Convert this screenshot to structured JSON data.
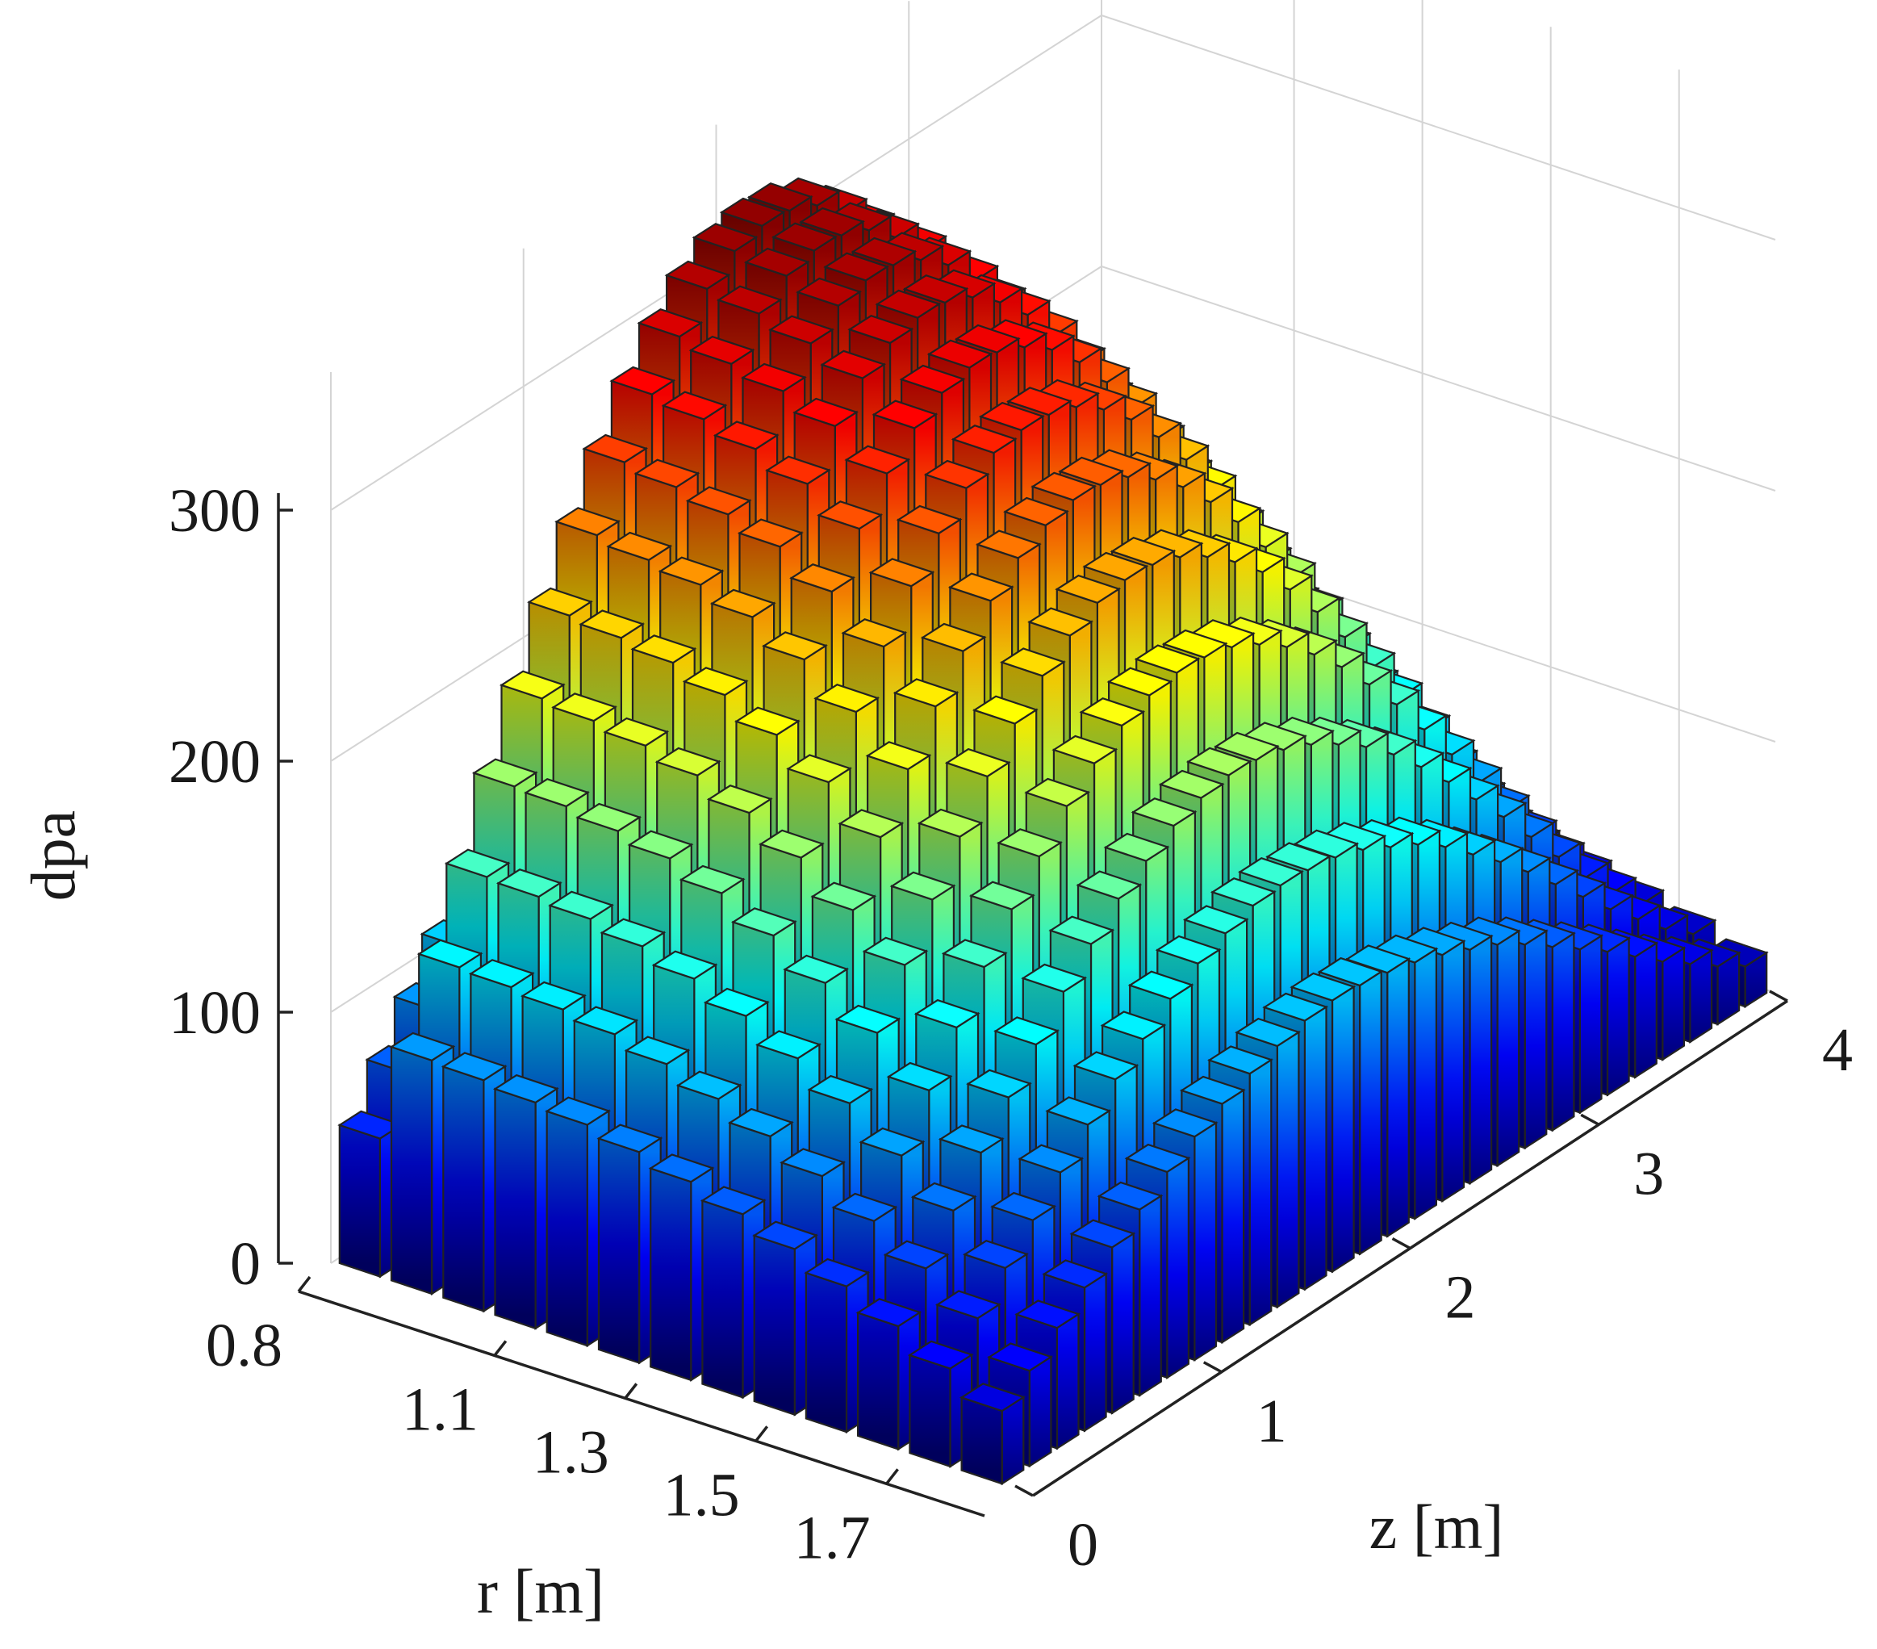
{
  "chart_data": {
    "type": "bar3d",
    "xlabel": "r [m]",
    "ylabel": "z [m]",
    "zlabel": "dpa",
    "r_ticks": [
      "0.8",
      "1.1",
      "1.3",
      "1.5",
      "1.7"
    ],
    "z_ticks": [
      "0",
      "1",
      "2",
      "3",
      "4"
    ],
    "dpa_ticks": [
      "0",
      "100",
      "200",
      "300"
    ],
    "r_range": [
      0.8,
      1.85
    ],
    "z_range": [
      0,
      4
    ],
    "dpa_range": [
      0,
      300
    ],
    "r_bins": 13,
    "z_bins": 28,
    "colormap": "jet",
    "grid": true,
    "shape": "dpa peaks near z = 1.9 m (≈345) and decreases with r; drops toward z = 0 and z = 4",
    "values": [
      [
        55,
        74,
        92,
        110,
        127,
        143,
        158,
        172,
        184,
        194,
        201,
        206,
        208,
        207,
        204,
        199,
        192,
        183,
        172,
        160,
        146,
        131,
        115,
        99,
        82,
        67,
        56,
        50
      ],
      [
        93,
        123,
        152,
        181,
        209,
        235,
        260,
        282,
        302,
        318,
        330,
        338,
        341,
        340,
        335,
        325,
        312,
        296,
        277,
        256,
        232,
        207,
        180,
        152,
        124,
        97,
        72,
        50
      ],
      [
        92,
        122,
        151,
        180,
        207,
        233,
        257,
        279,
        299,
        314,
        327,
        335,
        338,
        337,
        332,
        322,
        310,
        294,
        275,
        253,
        230,
        205,
        179,
        151,
        123,
        96,
        71,
        50
      ],
      [
        90,
        120,
        149,
        177,
        204,
        230,
        254,
        275,
        294,
        310,
        322,
        330,
        333,
        332,
        327,
        318,
        305,
        289,
        271,
        250,
        227,
        202,
        176,
        149,
        121,
        95,
        70,
        49
      ],
      [
        88,
        117,
        145,
        173,
        199,
        224,
        248,
        269,
        287,
        303,
        315,
        322,
        325,
        324,
        319,
        310,
        298,
        283,
        265,
        244,
        222,
        197,
        172,
        145,
        118,
        92,
        68,
        48
      ],
      [
        84,
        112,
        139,
        166,
        191,
        215,
        238,
        258,
        276,
        291,
        302,
        309,
        312,
        311,
        306,
        298,
        286,
        271,
        254,
        234,
        213,
        189,
        165,
        139,
        113,
        88,
        65,
        46
      ],
      [
        79,
        105,
        131,
        156,
        180,
        203,
        224,
        243,
        260,
        274,
        285,
        292,
        294,
        293,
        289,
        281,
        270,
        256,
        240,
        221,
        200,
        178,
        155,
        131,
        107,
        83,
        62,
        43
      ],
      [
        73,
        97,
        121,
        144,
        166,
        188,
        208,
        226,
        241,
        254,
        264,
        270,
        273,
        272,
        268,
        260,
        250,
        237,
        222,
        205,
        186,
        165,
        144,
        122,
        99,
        77,
        57,
        40
      ],
      [
        66,
        88,
        110,
        131,
        151,
        170,
        188,
        205,
        219,
        231,
        240,
        246,
        248,
        247,
        243,
        236,
        227,
        216,
        202,
        186,
        169,
        150,
        131,
        111,
        90,
        70,
        52,
        37
      ],
      [
        58,
        77,
        96,
        115,
        133,
        150,
        166,
        180,
        193,
        203,
        211,
        216,
        218,
        217,
        214,
        208,
        200,
        190,
        178,
        164,
        149,
        132,
        115,
        97,
        79,
        62,
        46,
        32
      ],
      [
        49,
        65,
        81,
        97,
        112,
        126,
        140,
        152,
        163,
        171,
        178,
        182,
        184,
        183,
        180,
        175,
        168,
        160,
        150,
        138,
        125,
        111,
        97,
        82,
        67,
        52,
        39,
        27
      ],
      [
        39,
        52,
        65,
        77,
        89,
        101,
        112,
        121,
        130,
        137,
        142,
        146,
        147,
        146,
        144,
        140,
        134,
        128,
        120,
        110,
        100,
        89,
        77,
        65,
        53,
        42,
        31,
        22
      ],
      [
        29,
        38,
        48,
        57,
        66,
        74,
        82,
        89,
        95,
        100,
        104,
        107,
        108,
        107,
        105,
        102,
        98,
        93,
        88,
        81,
        73,
        65,
        57,
        48,
        39,
        31,
        23,
        16
      ]
    ]
  }
}
